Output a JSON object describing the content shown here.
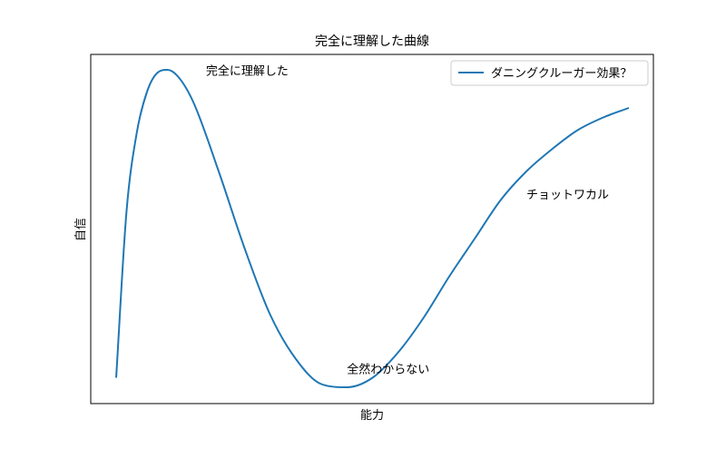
{
  "chart_data": {
    "type": "line",
    "title": "完全に理解した曲線",
    "xlabel": "能力",
    "ylabel": "自信",
    "xticks": [],
    "yticks": [],
    "grid": false,
    "legend": {
      "placement": "upper-right"
    },
    "series": [
      {
        "name": "ダニングクルーガー効果？",
        "color": "#1f77b4",
        "x": [
          0.0,
          0.2,
          0.4,
          0.6,
          0.8,
          1.0,
          1.2,
          1.5,
          2.0,
          2.5,
          3.0,
          3.5,
          4.0,
          4.5,
          5.0,
          5.5,
          6.0,
          6.5,
          7.0,
          7.5,
          8.0,
          8.5,
          9.0,
          9.5,
          10.0
        ],
        "y": [
          0.03,
          0.55,
          0.8,
          0.93,
          0.99,
          1.0,
          0.98,
          0.9,
          0.68,
          0.44,
          0.23,
          0.09,
          0.01,
          0.0,
          0.03,
          0.11,
          0.22,
          0.35,
          0.47,
          0.59,
          0.68,
          0.75,
          0.81,
          0.85,
          0.88
        ]
      }
    ],
    "annotations": [
      {
        "text": "完全に理解した",
        "x": 1.75,
        "y": 0.97
      },
      {
        "text": "全然わからない",
        "x": 4.5,
        "y": 0.03
      },
      {
        "text": "チョットワカル",
        "x": 8.0,
        "y": 0.58
      }
    ]
  }
}
